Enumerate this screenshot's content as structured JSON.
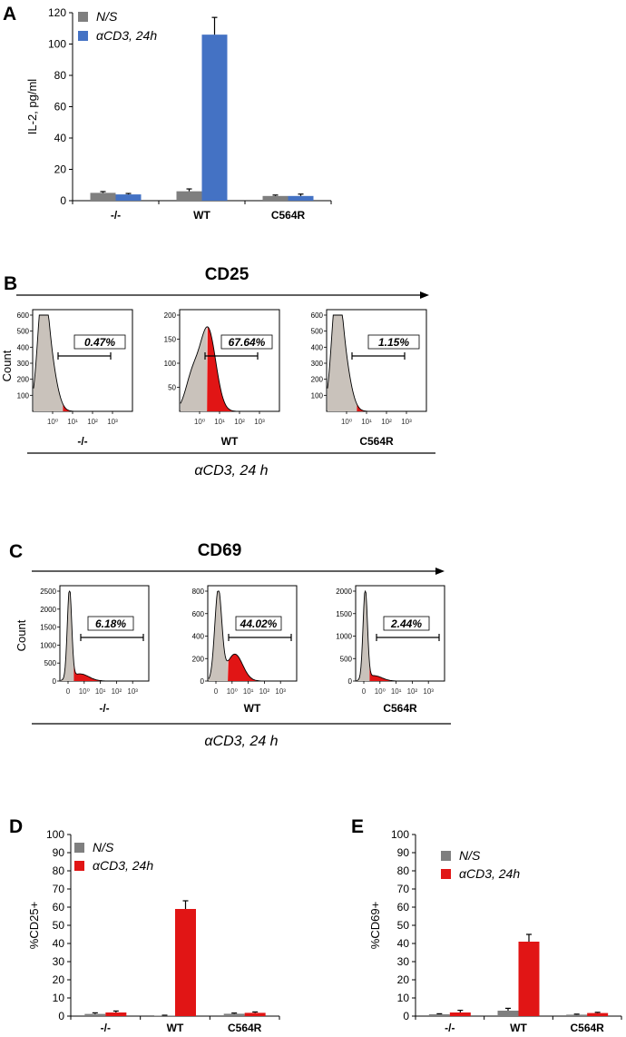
{
  "colors": {
    "gray": "#7f7f7f",
    "blue": "#4472c4",
    "red": "#e11515",
    "hist_fill": "#c9c2bb",
    "black": "#000000"
  },
  "panels": {
    "A": "A",
    "B": "B",
    "C": "C",
    "D": "D",
    "E": "E"
  },
  "stimulation_label": "αCD3, 24 h",
  "chart_data": [
    {
      "id": "A",
      "type": "bar",
      "ylabel": "IL-2, pg/ml",
      "ylim": [
        0,
        120
      ],
      "yticks": [
        0,
        20,
        40,
        60,
        80,
        100,
        120
      ],
      "categories": [
        "-/-",
        "WT",
        "C564R"
      ],
      "legend_position": "top-left",
      "series": [
        {
          "name": "N/S",
          "color": "gray",
          "values": [
            5,
            6,
            3
          ],
          "errors": [
            0.8,
            1.5,
            0.6
          ]
        },
        {
          "name": "αCD3, 24h",
          "color": "blue",
          "values": [
            4,
            106,
            3
          ],
          "errors": [
            0.6,
            11,
            1.2
          ]
        }
      ]
    },
    {
      "id": "B",
      "type": "histogram",
      "marker": "CD25",
      "ylabel": "Count",
      "group_label": "αCD3, 24 h",
      "xticks": [
        "10⁰",
        "10¹",
        "10²",
        "10³"
      ],
      "plots": [
        {
          "category": "-/-",
          "percent": "0.47%",
          "ymax": 600,
          "yticks": [
            100,
            200,
            300,
            400,
            500,
            600
          ],
          "gated_fraction": 0.0047
        },
        {
          "category": "WT",
          "percent": "67.64%",
          "ymax": 200,
          "yticks": [
            50,
            100,
            150,
            200
          ],
          "gated_fraction": 0.6764
        },
        {
          "category": "C564R",
          "percent": "1.15%",
          "ymax": 600,
          "yticks": [
            100,
            200,
            300,
            400,
            500,
            600
          ],
          "gated_fraction": 0.0115
        }
      ]
    },
    {
      "id": "C",
      "type": "histogram",
      "marker": "CD69",
      "ylabel": "Count",
      "group_label": "αCD3, 24 h",
      "xticks": [
        "0",
        "10⁰",
        "10¹",
        "10²",
        "10³"
      ],
      "plots": [
        {
          "category": "-/-",
          "percent": "6.18%",
          "ymax": 2500,
          "yticks": [
            0,
            500,
            1000,
            1500,
            2000,
            2500
          ],
          "gated_fraction": 0.0618
        },
        {
          "category": "WT",
          "percent": "44.02%",
          "ymax": 800,
          "yticks": [
            0,
            200,
            400,
            600,
            800
          ],
          "gated_fraction": 0.4402
        },
        {
          "category": "C564R",
          "percent": "2.44%",
          "ymax": 2000,
          "yticks": [
            0,
            500,
            1000,
            1500,
            2000
          ],
          "gated_fraction": 0.0244
        }
      ]
    },
    {
      "id": "D",
      "type": "bar",
      "ylabel": "%CD25+",
      "ylim": [
        0,
        100
      ],
      "yticks": [
        0,
        10,
        20,
        30,
        40,
        50,
        60,
        70,
        80,
        90,
        100
      ],
      "categories": [
        "-/-",
        "WT",
        "C564R"
      ],
      "legend_position": "top-left",
      "series": [
        {
          "name": "N/S",
          "color": "gray",
          "values": [
            1.2,
            0.3,
            1.3
          ],
          "errors": [
            0.6,
            0.2,
            0.4
          ]
        },
        {
          "name": "αCD3, 24h",
          "color": "red",
          "values": [
            2,
            59,
            1.8
          ],
          "errors": [
            0.8,
            4.5,
            0.5
          ]
        }
      ]
    },
    {
      "id": "E",
      "type": "bar",
      "ylabel": "%CD69+",
      "ylim": [
        0,
        100
      ],
      "yticks": [
        0,
        10,
        20,
        30,
        40,
        50,
        60,
        70,
        80,
        90,
        100
      ],
      "categories": [
        "-/-",
        "WT",
        "C564R"
      ],
      "legend_position": "top-left",
      "series": [
        {
          "name": "N/S",
          "color": "gray",
          "values": [
            1,
            3,
            0.8
          ],
          "errors": [
            0.3,
            1.3,
            0.3
          ]
        },
        {
          "name": "αCD3, 24h",
          "color": "red",
          "values": [
            2,
            41,
            1.7
          ],
          "errors": [
            1.2,
            4,
            0.4
          ]
        }
      ]
    }
  ]
}
